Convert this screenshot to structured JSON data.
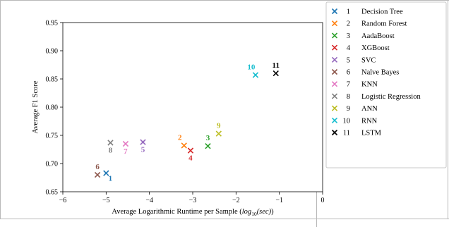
{
  "chart_data": {
    "type": "scatter",
    "title": "",
    "xlabel": "Average Logarithmic Runtime per Sample (",
    "xlabel_math": "log",
    "xlabel_sub": "10",
    "xlabel_tail": "(sec)",
    "xlabel_close": ")",
    "ylabel": "Average F1 Score",
    "xlim": [
      -6,
      0
    ],
    "ylim": [
      0.65,
      0.95
    ],
    "xticks": [
      -6,
      -5,
      -4,
      -3,
      -2,
      -1,
      0
    ],
    "yticks": [
      0.65,
      0.7,
      0.75,
      0.8,
      0.85,
      0.9,
      0.95
    ],
    "xtick_labels": [
      "−6",
      "−5",
      "−4",
      "−3",
      "−2",
      "−1",
      "0"
    ],
    "ytick_labels": [
      "0.65",
      "0.70",
      "0.75",
      "0.80",
      "0.85",
      "0.90",
      "0.95"
    ],
    "grid": false,
    "legend_position": "right (outside plot)",
    "marker": "×",
    "series": [
      {
        "id": "1",
        "name": "Decision Tree",
        "color": "#1f77b4",
        "x": -5.0,
        "y": 0.683,
        "label_pos": "below-right"
      },
      {
        "id": "2",
        "name": "Random Forest",
        "color": "#ff7f0e",
        "x": -3.2,
        "y": 0.732,
        "label_pos": "above-left"
      },
      {
        "id": "3",
        "name": "AadaBoost",
        "color": "#2ca02c",
        "x": -2.65,
        "y": 0.731,
        "label_pos": "above"
      },
      {
        "id": "4",
        "name": "XGBoost",
        "color": "#d62728",
        "x": -3.05,
        "y": 0.723,
        "label_pos": "below"
      },
      {
        "id": "5",
        "name": "SVC",
        "color": "#9467bd",
        "x": -4.15,
        "y": 0.738,
        "label_pos": "below"
      },
      {
        "id": "6",
        "name": "Naïve Bayes",
        "color": "#8c564b",
        "x": -5.2,
        "y": 0.68,
        "label_pos": "above"
      },
      {
        "id": "7",
        "name": "KNN",
        "color": "#e377c2",
        "x": -4.55,
        "y": 0.735,
        "label_pos": "below"
      },
      {
        "id": "8",
        "name": "Logistic Regression",
        "color": "#7f7f7f",
        "x": -4.9,
        "y": 0.737,
        "label_pos": "below"
      },
      {
        "id": "9",
        "name": "ANN",
        "color": "#bcbd22",
        "x": -2.4,
        "y": 0.753,
        "label_pos": "above"
      },
      {
        "id": "10",
        "name": "RNN",
        "color": "#17becf",
        "x": -1.55,
        "y": 0.857,
        "label_pos": "above-left"
      },
      {
        "id": "11",
        "name": "LSTM",
        "color": "#000000",
        "x": -1.08,
        "y": 0.86,
        "label_pos": "above"
      }
    ]
  }
}
